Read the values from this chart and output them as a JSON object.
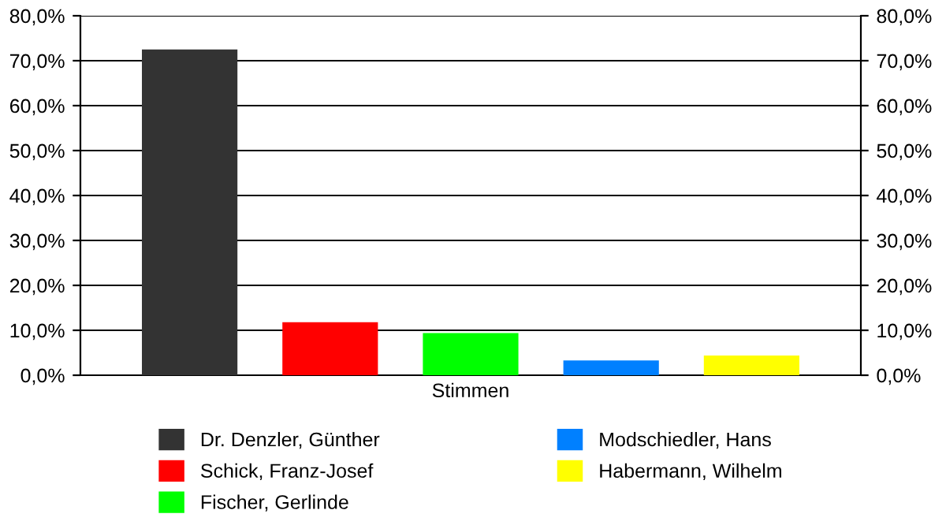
{
  "chart_data": {
    "type": "bar",
    "categories": [
      "Stimmen"
    ],
    "series": [
      {
        "name": "Dr. Denzler, Günther",
        "color": "#333333",
        "values": [
          72.5
        ]
      },
      {
        "name": "Schick, Franz-Josef",
        "color": "#ff0000",
        "values": [
          11.8
        ]
      },
      {
        "name": "Fischer, Gerlinde",
        "color": "#00ff00",
        "values": [
          9.4
        ]
      },
      {
        "name": "Modschiedler, Hans",
        "color": "#0080ff",
        "values": [
          3.3
        ]
      },
      {
        "name": "Habermann, Wilhelm",
        "color": "#ffff00",
        "values": [
          4.4
        ]
      }
    ],
    "ylim": [
      0,
      80
    ],
    "yticks": [
      {
        "value": 0,
        "label": "0,0%"
      },
      {
        "value": 10,
        "label": "10,0%"
      },
      {
        "value": 20,
        "label": "20,0%"
      },
      {
        "value": 30,
        "label": "30,0%"
      },
      {
        "value": 40,
        "label": "40,0%"
      },
      {
        "value": 50,
        "label": "50,0%"
      },
      {
        "value": 60,
        "label": "60,0%"
      },
      {
        "value": 70,
        "label": "70,0%"
      },
      {
        "value": 80,
        "label": "80,0%"
      }
    ],
    "grid": "y",
    "legend": "bottom"
  }
}
